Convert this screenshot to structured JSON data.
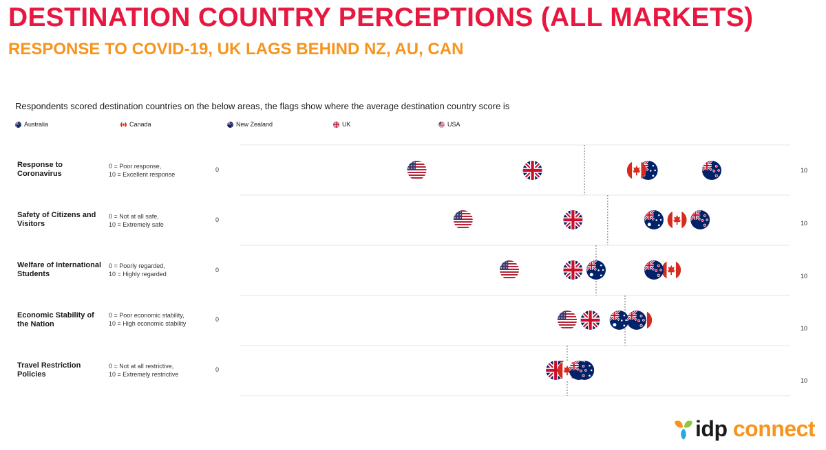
{
  "header": {
    "title": "DESTINATION COUNTRY PERCEPTIONS (ALL MARKETS)",
    "subtitle": "RESPONSE TO COVID-19, UK LAGS BEHIND NZ, AU, CAN"
  },
  "intro": "Respondents scored destination countries on the below areas, the flags show where the average destination country score is",
  "legend": [
    {
      "key": "au",
      "label": "Australia",
      "icon": "australia-flag-icon"
    },
    {
      "key": "ca",
      "label": "Canada",
      "icon": "canada-flag-icon"
    },
    {
      "key": "nz",
      "label": "New Zealand",
      "icon": "new-zealand-flag-icon"
    },
    {
      "key": "uk",
      "label": "UK",
      "icon": "uk-flag-icon"
    },
    {
      "key": "us",
      "label": "USA",
      "icon": "usa-flag-icon"
    }
  ],
  "rows": [
    {
      "label": "Response to Coronavirus",
      "desc_low": "0 = Poor response,",
      "desc_high": "10 = Excellent response",
      "min": "0",
      "max": "10"
    },
    {
      "label": "Safety of Citizens and Visitors",
      "desc_low": "0 = Not at all safe,",
      "desc_high": "10 = Extremely safe",
      "min": "0",
      "max": "10"
    },
    {
      "label": "Welfare of International Students",
      "desc_low": "0 = Poorly regarded,",
      "desc_high": "10 = Highly regarded",
      "min": "0",
      "max": "10"
    },
    {
      "label": "Economic Stability of the Nation",
      "desc_low": "0 = Poor economic stability,",
      "desc_high": "10 = High economic stability",
      "min": "0",
      "max": "10"
    },
    {
      "label": "Travel Restriction Policies",
      "desc_low": "0 = Not at all restrictive,",
      "desc_high": "10 = Extremely restrictive",
      "min": "0",
      "max": "10"
    }
  ],
  "colors": {
    "title": "#e8173f",
    "subtitle": "#f7941d",
    "avg_line": "#888888",
    "gridline": "#e6e6e6"
  },
  "logo": {
    "text_part1": "idp",
    "text_part2": " connect"
  },
  "chart_data": {
    "type": "scatter",
    "xlim": [
      0,
      10
    ],
    "rows": [
      "Response to Coronavirus",
      "Safety of Citizens and Visitors",
      "Welfare of International Students",
      "Economic Stability of the Nation",
      "Travel Restriction Policies"
    ],
    "series": [
      {
        "name": "Australia",
        "key": "au",
        "values": [
          7.4,
          7.5,
          6.5,
          6.9,
          6.3
        ]
      },
      {
        "name": "Canada",
        "key": "ca",
        "values": [
          7.2,
          7.9,
          7.8,
          7.3,
          6.0
        ]
      },
      {
        "name": "New Zealand",
        "key": "nz",
        "values": [
          8.5,
          8.3,
          7.5,
          7.2,
          6.2
        ]
      },
      {
        "name": "UK",
        "key": "uk",
        "values": [
          5.4,
          6.1,
          6.1,
          6.4,
          5.8
        ]
      },
      {
        "name": "USA",
        "key": "us",
        "values": [
          3.4,
          4.2,
          5.0,
          6.0,
          5.9
        ]
      }
    ],
    "averages": [
      6.3,
      6.7,
      6.5,
      7.0,
      6.0
    ],
    "legend_position": "top"
  }
}
